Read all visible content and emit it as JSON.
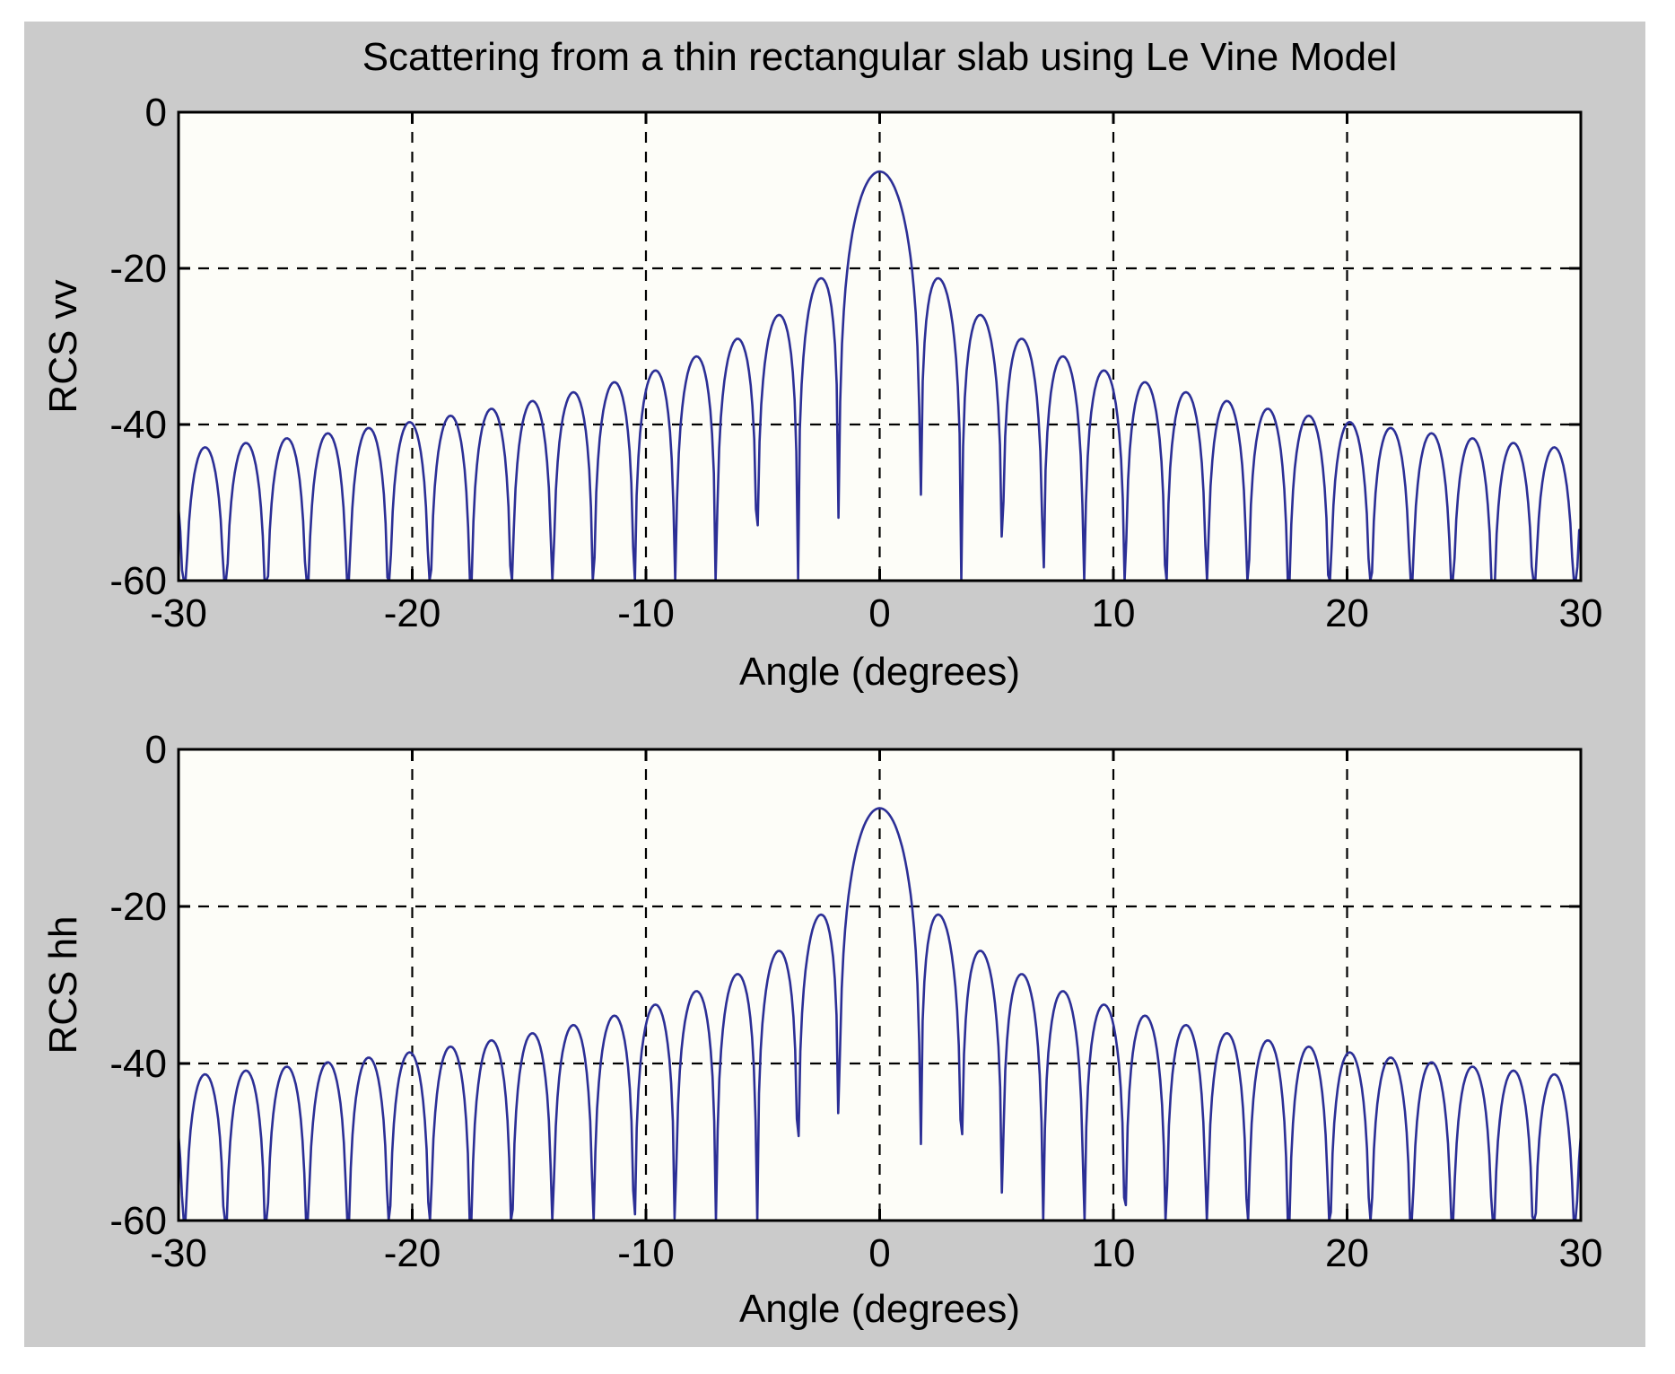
{
  "figure": {
    "title": "Scattering from a thin rectangular slab using Le Vine Model",
    "canvas_color": "#cbcbcb",
    "plot_background": "#fdfdf8",
    "axis_color": "#000000",
    "grid_color": "#000000",
    "grid_style": "dashed",
    "line_color": "#2c2f96"
  },
  "chart_data": [
    {
      "type": "line",
      "title": "Scattering from a thin rectangular slab using Le Vine Model",
      "xlabel": "Angle (degrees)",
      "ylabel": "RCS vv",
      "xlim": [
        -30,
        30
      ],
      "ylim": [
        -60,
        0
      ],
      "xticks": [
        -30,
        -20,
        -10,
        0,
        10,
        20,
        30
      ],
      "yticks": [
        0,
        -20,
        -40,
        -60
      ],
      "grid": "dashed at interior ticks",
      "legend": null,
      "series": [
        {
          "name": "RCS vv",
          "color": "#2c2f96",
          "model": {
            "formula": "y_dB = peak_db + lobe_scale*20*log10(|sinc(theta/null_spacing_deg)|) + tilt_db_per_deg*|theta|, clipped below at ylim[0]",
            "peak_db": -7.6,
            "null_spacing_deg": 1.75,
            "lobe_scale": 1.03,
            "tilt_db_per_deg": 0,
            "sample_step_deg": 0.0751
          },
          "key_points": [
            {
              "angle_deg": 0,
              "value_db": -7.6,
              "label": "main lobe peak"
            },
            {
              "angle_deg": 2.55,
              "value_db": -21.2,
              "label": "first sidelobe"
            },
            {
              "angle_deg": 4.3,
              "value_db": -25.4,
              "label": "second sidelobe"
            },
            {
              "angle_deg": 10,
              "value_db": -33.5,
              "label": "sidelobe near 10 deg"
            },
            {
              "angle_deg": 20,
              "value_db": -40.0,
              "label": "sidelobe near 20 deg"
            },
            {
              "angle_deg": 30,
              "value_db": -43.0,
              "label": "edge sidelobe level"
            },
            {
              "angle_deg": "nulls every ~1.75 deg",
              "value_db": -60,
              "label": "nulls clipped at axis bottom"
            }
          ]
        }
      ]
    },
    {
      "type": "line",
      "title": "",
      "xlabel": "Angle (degrees)",
      "ylabel": "RCS hh",
      "xlim": [
        -30,
        30
      ],
      "ylim": [
        -60,
        0
      ],
      "xticks": [
        -30,
        -20,
        -10,
        0,
        10,
        20,
        30
      ],
      "yticks": [
        0,
        -20,
        -40,
        -60
      ],
      "grid": "dashed at interior ticks",
      "legend": null,
      "series": [
        {
          "name": "RCS hh",
          "color": "#2c2f96",
          "model": {
            "formula": "y_dB = peak_db + lobe_scale*20*log10(|sinc(theta/null_spacing_deg)|) + tilt_db_per_deg*|theta|, clipped below at ylim[0]",
            "peak_db": -7.5,
            "null_spacing_deg": 1.75,
            "lobe_scale": 1.03,
            "tilt_db_per_deg": 0.05,
            "sample_step_deg": 0.0737
          },
          "key_points": [
            {
              "angle_deg": 0,
              "value_db": -7.5,
              "label": "main lobe peak"
            },
            {
              "angle_deg": 2.55,
              "value_db": -21.0,
              "label": "first sidelobe"
            },
            {
              "angle_deg": 10,
              "value_db": -33.0,
              "label": "sidelobe near 10 deg"
            },
            {
              "angle_deg": 20,
              "value_db": -38.5,
              "label": "sidelobe near 20 deg"
            },
            {
              "angle_deg": 30,
              "value_db": -41.6,
              "label": "edge sidelobe level"
            },
            {
              "angle_deg": "nulls every ~1.75 deg",
              "value_db": -60,
              "label": "nulls clipped at axis bottom"
            }
          ]
        }
      ]
    }
  ]
}
